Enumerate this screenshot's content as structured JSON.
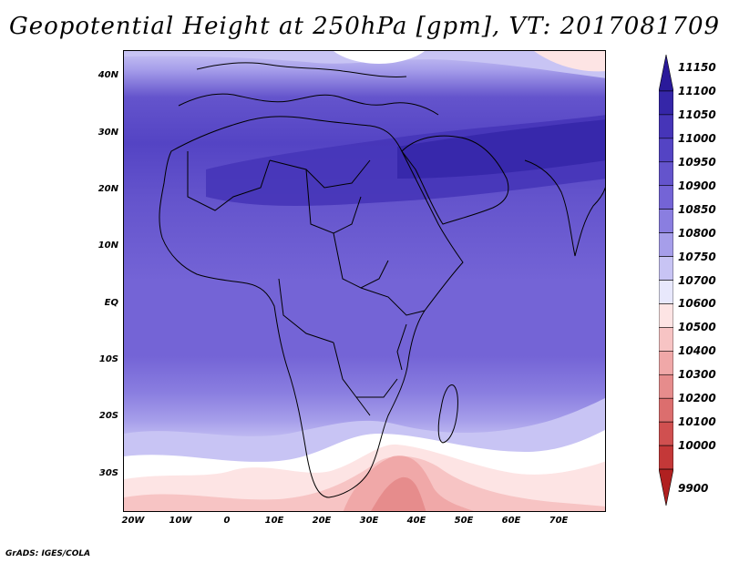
{
  "title": "Geopotential Height at 250hPa [gpm], VT: 2017081709",
  "credit": "GrADS: IGES/COLA",
  "map": {
    "lat_labels": [
      "40N",
      "30N",
      "20N",
      "10N",
      "EQ",
      "10S",
      "20S",
      "30S"
    ],
    "lon_labels": [
      "20W",
      "10W",
      "0",
      "10E",
      "20E",
      "30E",
      "40E",
      "50E",
      "60E",
      "70E"
    ]
  },
  "colorbar": {
    "levels": [
      "11150",
      "11100",
      "11050",
      "11000",
      "10950",
      "10900",
      "10850",
      "10800",
      "10750",
      "10700",
      "10600",
      "10500",
      "10400",
      "10300",
      "10200",
      "10100",
      "10000",
      "9900"
    ],
    "colors": [
      "#2a1a9a",
      "#3526a8",
      "#4635b8",
      "#5444c4",
      "#6454cc",
      "#7464d6",
      "#8a7ee0",
      "#a69eea",
      "#c8c4f4",
      "#e8e8fc",
      "#fde4e4",
      "#f7c4c4",
      "#f0a8a8",
      "#e68c8c",
      "#dc6e6e",
      "#d05050",
      "#c43838",
      "#b02020"
    ]
  }
}
